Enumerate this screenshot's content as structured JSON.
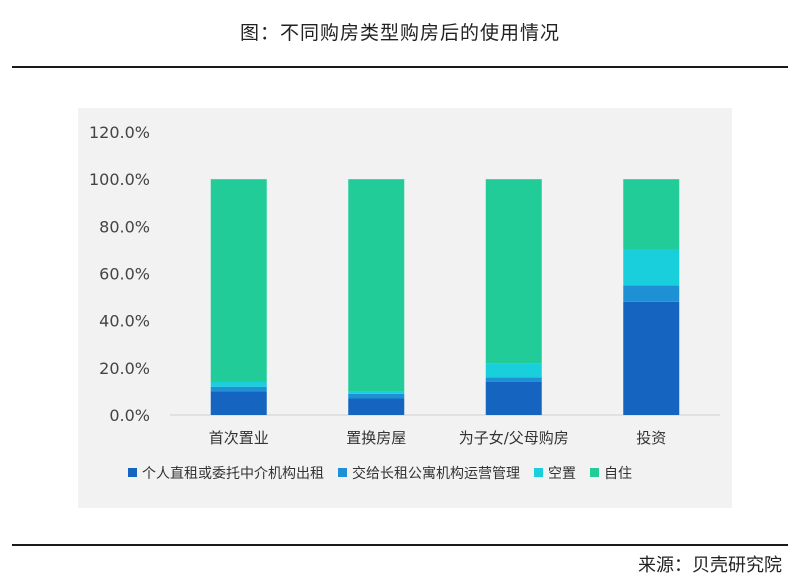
{
  "header": {
    "title": "图：不同购房类型购房后的使用情况"
  },
  "footer": {
    "source": "来源：贝壳研究院"
  },
  "colors": {
    "background_panel": "#f2f2f2",
    "rule": "#1a1a1a"
  },
  "chart_data": {
    "type": "bar",
    "stacked": true,
    "title": "",
    "xlabel": "",
    "ylabel": "",
    "categories": [
      "首次置业",
      "置换房屋",
      "为子女/父母购房",
      "投资"
    ],
    "series": [
      {
        "name": "个人直租或委托中介机构出租",
        "color": "#1565c0",
        "values": [
          10,
          7,
          14,
          48
        ]
      },
      {
        "name": "交给长租公寓机构运营管理",
        "color": "#1e90d6",
        "values": [
          2,
          2,
          2,
          7
        ]
      },
      {
        "name": "空置",
        "color": "#19cfdc",
        "values": [
          2,
          1,
          6,
          15
        ]
      },
      {
        "name": "自住",
        "color": "#21cc98",
        "values": [
          86,
          90,
          78,
          30
        ]
      }
    ],
    "ylim": [
      0,
      120
    ],
    "yticks": [
      "0.0%",
      "20.0%",
      "40.0%",
      "60.0%",
      "80.0%",
      "100.0%",
      "120.0%"
    ],
    "grid": false,
    "legend_position": "bottom"
  }
}
